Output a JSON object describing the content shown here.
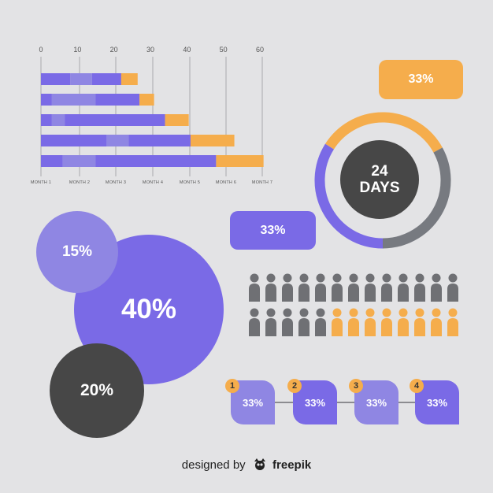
{
  "chart_data": [
    {
      "type": "bar",
      "variant": "stacked-horizontal-gantt",
      "x_ticks": [
        0,
        10,
        20,
        30,
        40,
        50,
        60
      ],
      "categories": [
        "MONTH 1",
        "MONTH 2",
        "MONTH 3",
        "MONTH 4",
        "MONTH 5",
        "MONTH 6",
        "MONTH 7"
      ],
      "xlim": [
        0,
        60
      ],
      "grid": "vertical",
      "bars": [
        {
          "segments": [
            {
              "from": 0,
              "to": 8,
              "color": "#7a6ae6"
            },
            {
              "from": 8,
              "to": 14,
              "color": "#8f86e3"
            },
            {
              "from": 14,
              "to": 22,
              "color": "#7a6ae6"
            },
            {
              "from": 22,
              "to": 26.5,
              "color": "#f5ad4c"
            }
          ]
        },
        {
          "segments": [
            {
              "from": 0,
              "to": 3,
              "color": "#7a6ae6"
            },
            {
              "from": 3,
              "to": 15,
              "color": "#8f86e3"
            },
            {
              "from": 15,
              "to": 27,
              "color": "#7a6ae6"
            },
            {
              "from": 27,
              "to": 31,
              "color": "#f5ad4c"
            }
          ]
        },
        {
          "segments": [
            {
              "from": 0,
              "to": 3,
              "color": "#7a6ae6"
            },
            {
              "from": 3,
              "to": 6.5,
              "color": "#8f86e3"
            },
            {
              "from": 6.5,
              "to": 34,
              "color": "#7a6ae6"
            },
            {
              "from": 34,
              "to": 40.5,
              "color": "#f5ad4c"
            }
          ]
        },
        {
          "segments": [
            {
              "from": 0,
              "to": 18,
              "color": "#7a6ae6"
            },
            {
              "from": 18,
              "to": 24,
              "color": "#8f86e3"
            },
            {
              "from": 24,
              "to": 41,
              "color": "#7a6ae6"
            },
            {
              "from": 41,
              "to": 53,
              "color": "#f5ad4c"
            }
          ]
        },
        {
          "segments": [
            {
              "from": 0,
              "to": 6,
              "color": "#7a6ae6"
            },
            {
              "from": 6,
              "to": 15,
              "color": "#8f86e3"
            },
            {
              "from": 15,
              "to": 48,
              "color": "#7a6ae6"
            },
            {
              "from": 48,
              "to": 61,
              "color": "#f5ad4c"
            }
          ]
        }
      ]
    },
    {
      "type": "pie",
      "variant": "donut",
      "center_label": [
        "24",
        "DAYS"
      ],
      "slices": [
        {
          "value": 33,
          "color": "#f5ad4c"
        },
        {
          "value": 33,
          "color": "#777a80"
        },
        {
          "value": 34,
          "color": "#7a6ae6"
        }
      ]
    },
    {
      "type": "bubble",
      "bubbles": [
        {
          "label": "40%",
          "color": "#7a6ae6"
        },
        {
          "label": "15%",
          "color": "#8f86e3"
        },
        {
          "label": "20%",
          "color": "#474747"
        }
      ]
    },
    {
      "type": "pictograph",
      "rows": 2,
      "per_row": 13,
      "highlighted_row2": 8,
      "base_color": "#6f7074",
      "highlight_color": "#f5ad4c"
    },
    {
      "type": "steps",
      "steps": [
        {
          "number": "1",
          "label": "33%",
          "color": "#8f86e3"
        },
        {
          "number": "2",
          "label": "33%",
          "color": "#7a6ae6"
        },
        {
          "number": "3",
          "label": "33%",
          "color": "#8f86e3"
        },
        {
          "number": "4",
          "label": "33%",
          "color": "#7a6ae6"
        }
      ]
    }
  ],
  "callouts": {
    "orange": "33%",
    "purple": "33%"
  },
  "credit": {
    "prefix": "designed by",
    "logo_icon": "freepik-logo-icon",
    "brand": "freepik"
  }
}
